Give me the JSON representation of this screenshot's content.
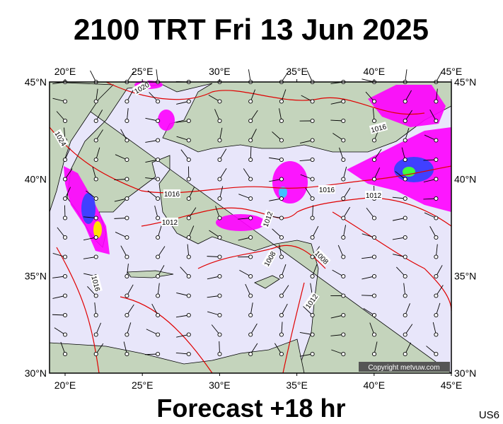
{
  "header": {
    "title": "2100 TRT Fri 13 Jun 2025"
  },
  "map": {
    "lon_labels": [
      "20°E",
      "25°E",
      "30°E",
      "35°E",
      "40°E",
      "45°E"
    ],
    "lat_labels": [
      "45°N",
      "40°N",
      "35°N",
      "30°N"
    ],
    "isobar_labels": [
      "1020",
      "1024",
      "1016",
      "1012",
      "1016",
      "1016",
      "1012",
      "1012",
      "1008",
      "1008",
      "1016",
      "1012"
    ],
    "copyright": "Copyright metvuw.com"
  },
  "footer": {
    "forecast": "Forecast +18 hr",
    "code": "US6"
  }
}
